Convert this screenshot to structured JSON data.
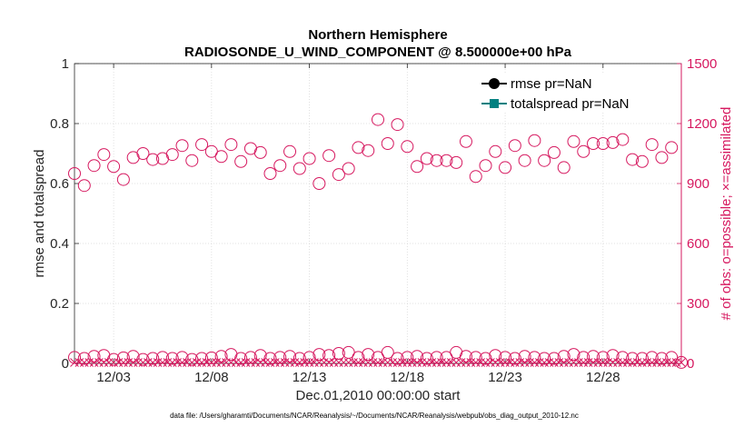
{
  "chart_data": {
    "type": "scatter",
    "title": "Northern Hemisphere",
    "subtitle": "RADIOSONDE_U_WIND_COMPONENT @ 8.500000e+00 hPa",
    "xlabel": "Dec.01,2010 00:00:00 start",
    "ylabel_left": "rmse and totalspread",
    "ylabel_right": "# of obs: o=possible; ×=assimilated",
    "ylim_left": [
      0,
      1
    ],
    "ylim_right": [
      0,
      1500
    ],
    "xlim": [
      1,
      32
    ],
    "x_ticks": [
      {
        "x": 3,
        "label": "12/03"
      },
      {
        "x": 8,
        "label": "12/08"
      },
      {
        "x": 13,
        "label": "12/13"
      },
      {
        "x": 18,
        "label": "12/18"
      },
      {
        "x": 23,
        "label": "12/23"
      },
      {
        "x": 28,
        "label": "12/28"
      }
    ],
    "y_ticks_left": [
      "0",
      "0.2",
      "0.4",
      "0.6",
      "0.8",
      "1"
    ],
    "y_ticks_right": [
      "0",
      "300",
      "600",
      "900",
      "1200",
      "1500"
    ],
    "legend": [
      {
        "label": "rmse pr=NaN",
        "color": "#000000",
        "marker": "circle"
      },
      {
        "label": "totalspread pr=NaN",
        "color": "#008080",
        "marker": "square"
      }
    ],
    "legend_position": "top-right",
    "footnote": "data file: /Users/gharamti/Documents/NCAR/Reanalysis/~/Documents/NCAR/Reanalysis/webpub/obs_diag_output_2010-12.nc",
    "series_right_color": "#d6185f",
    "possible_obs": {
      "x": [
        1.0,
        1.5,
        2.0,
        2.5,
        3.0,
        3.5,
        4.0,
        4.5,
        5.0,
        5.5,
        6.0,
        6.5,
        7.0,
        7.5,
        8.0,
        8.5,
        9.0,
        9.5,
        10.0,
        10.5,
        11.0,
        11.5,
        12.0,
        12.5,
        13.0,
        13.5,
        14.0,
        14.5,
        15.0,
        15.5,
        16.0,
        16.5,
        17.0,
        17.5,
        18.0,
        18.5,
        19.0,
        19.5,
        20.0,
        20.5,
        21.0,
        21.5,
        22.0,
        22.5,
        23.0,
        23.5,
        24.0,
        24.5,
        25.0,
        25.5,
        26.0,
        26.5,
        27.0,
        27.5,
        28.0,
        28.5,
        29.0,
        29.5,
        30.0,
        30.5,
        31.0,
        31.5
      ],
      "values": [
        950,
        890,
        990,
        1045,
        985,
        920,
        1030,
        1050,
        1020,
        1025,
        1045,
        1090,
        1015,
        1095,
        1060,
        1035,
        1095,
        1010,
        1075,
        1055,
        950,
        990,
        1060,
        975,
        1025,
        900,
        1040,
        945,
        975,
        1080,
        1065,
        1220,
        1100,
        1195,
        1085,
        985,
        1025,
        1015,
        1015,
        1005,
        1110,
        935,
        990,
        1060,
        980,
        1090,
        1015,
        1115,
        1015,
        1055,
        980,
        1110,
        1060,
        1100,
        1100,
        1105,
        1120,
        1020,
        1010,
        1095,
        1030,
        1080
      ]
    },
    "possible_obs_low": {
      "x": [
        1.0,
        1.5,
        2.0,
        2.5,
        3.0,
        3.5,
        4.0,
        4.5,
        5.0,
        5.5,
        6.0,
        6.5,
        7.0,
        7.5,
        8.0,
        8.5,
        9.0,
        9.5,
        10.0,
        10.5,
        11.0,
        11.5,
        12.0,
        12.5,
        13.0,
        13.5,
        14.0,
        14.5,
        15.0,
        15.5,
        16.0,
        16.5,
        17.0,
        17.5,
        18.0,
        18.5,
        19.0,
        19.5,
        20.0,
        20.5,
        21.0,
        21.5,
        22.0,
        22.5,
        23.0,
        23.5,
        24.0,
        24.5,
        25.0,
        25.5,
        26.0,
        26.5,
        27.0,
        27.5,
        28.0,
        28.5,
        29.0,
        29.5,
        30.0,
        30.5,
        31.0,
        31.5,
        32.0
      ],
      "values": [
        30,
        25,
        35,
        40,
        20,
        28,
        35,
        20,
        25,
        30,
        25,
        30,
        20,
        25,
        28,
        35,
        45,
        25,
        30,
        40,
        25,
        30,
        35,
        25,
        30,
        45,
        40,
        50,
        55,
        30,
        45,
        30,
        55,
        25,
        30,
        35,
        25,
        30,
        30,
        55,
        35,
        30,
        25,
        40,
        30,
        25,
        35,
        30,
        25,
        25,
        35,
        45,
        30,
        35,
        30,
        40,
        30,
        25,
        25,
        30,
        25,
        30,
        5
      ]
    },
    "assimilated_obs": {
      "x_start": 1.0,
      "x_end": 32.0,
      "step": 0.25,
      "value": 0
    }
  }
}
